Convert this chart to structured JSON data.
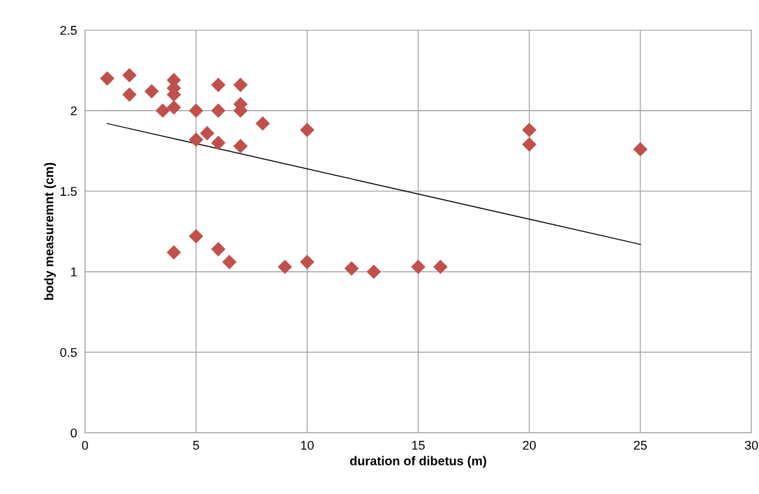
{
  "chart_data": {
    "type": "scatter",
    "xlabel": "duration of dibetus (m)",
    "ylabel": "body measuremnt (cm)",
    "xlim": [
      0,
      30
    ],
    "xticks": [
      0,
      5,
      10,
      15,
      20,
      25,
      30
    ],
    "ylim": [
      0,
      2.5
    ],
    "yticks": [
      {
        "value": 0,
        "label": "0"
      },
      0.5,
      1,
      1.5,
      2,
      2.5
    ],
    "grid": true,
    "series": [
      {
        "marker": "diamond",
        "color": "#c0504d",
        "x": [
          1,
          2,
          2,
          3,
          3.5,
          4,
          4,
          4,
          4,
          5,
          5,
          5.5,
          6,
          6,
          6,
          7,
          7,
          7,
          7,
          8,
          10,
          20,
          20,
          25,
          4,
          5,
          6,
          6.5,
          9,
          10,
          12,
          13,
          15,
          16
        ],
        "values": [
          2.2,
          2.22,
          2.1,
          2.12,
          2.0,
          2.19,
          2.14,
          2.1,
          2.02,
          2.0,
          1.82,
          1.86,
          2.16,
          2.0,
          1.8,
          2.16,
          2.04,
          2.0,
          1.78,
          1.92,
          1.88,
          1.88,
          1.79,
          1.76,
          1.12,
          1.22,
          1.14,
          1.06,
          1.03,
          1.06,
          1.02,
          1.0,
          1.03,
          1.03
        ]
      },
      {
        "type": "line",
        "color": "#000000",
        "x": [
          1,
          25
        ],
        "values": [
          1.92,
          1.17
        ]
      }
    ]
  }
}
